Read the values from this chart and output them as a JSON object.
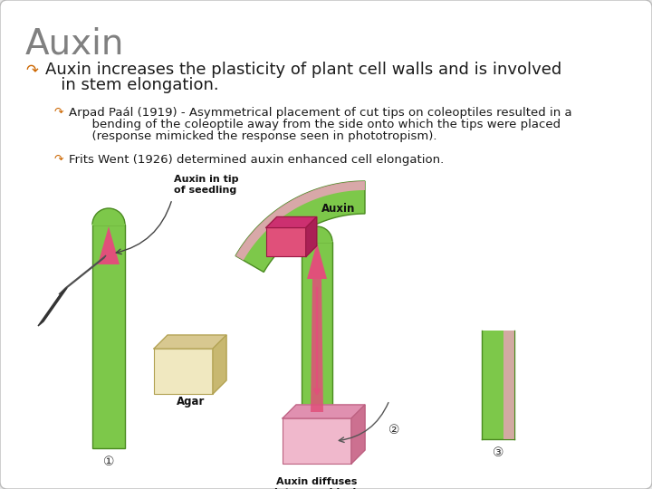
{
  "bg_color": "#e8e8e8",
  "slide_bg": "#ffffff",
  "title": "Auxin",
  "title_color": "#808080",
  "title_fontsize": 28,
  "bullet_color": "#cc6600",
  "main_bullet_line1": "Auxin increases the plasticity of plant cell walls and is involved",
  "main_bullet_line2": "   in stem elongation.",
  "main_bullet_fontsize": 13,
  "sub_bullet1_line1": "Arpad Paál (1919) - Asymmetrical placement of cut tips on coleoptiles resulted in a",
  "sub_bullet1_line2": "      bending of the coleoptile away from the side onto which the tips were placed",
  "sub_bullet1_line3": "      (response mimicked the response seen in phototropism).",
  "sub_bullet2_text": "Frits Went (1926) determined auxin enhanced cell elongation.",
  "sub_bullet_fontsize": 9.5,
  "text_color": "#1a1a1a",
  "green_light": "#7dc84a",
  "green_dark": "#4a8a20",
  "green_mid": "#5aaa30",
  "pink_auxin": "#e0507a",
  "pink_light": "#f0a0c0",
  "pink_agar": "#f0b8cc",
  "agar_cream": "#f0e8c0",
  "agar_cream_dark": "#d8c890",
  "knife_gray": "#909090",
  "knife_dark": "#505050",
  "label_fontsize": 7.5,
  "number_fontsize": 10
}
